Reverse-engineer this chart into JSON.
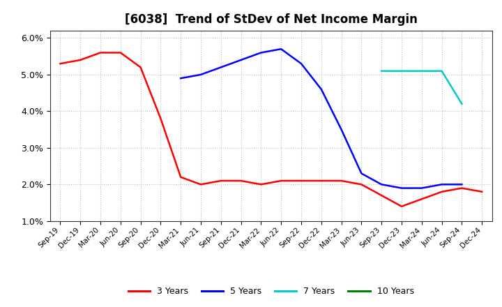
{
  "title": "[6038]  Trend of StDev of Net Income Margin",
  "title_fontsize": 12,
  "background_color": "#ffffff",
  "grid_color": "#aaaaaa",
  "ylim": [
    0.01,
    0.062
  ],
  "yticks": [
    0.01,
    0.02,
    0.03,
    0.04,
    0.05,
    0.06
  ],
  "xtick_labels": [
    "Sep-19",
    "Dec-19",
    "Mar-20",
    "Jun-20",
    "Sep-20",
    "Dec-20",
    "Mar-21",
    "Jun-21",
    "Sep-21",
    "Dec-21",
    "Mar-22",
    "Jun-22",
    "Sep-22",
    "Dec-22",
    "Mar-23",
    "Jun-23",
    "Sep-23",
    "Dec-23",
    "Mar-24",
    "Jun-24",
    "Sep-24",
    "Dec-24"
  ],
  "series": {
    "3 Years": {
      "color": "#ff0000",
      "data": [
        0.053,
        0.054,
        0.056,
        0.056,
        0.052,
        0.038,
        0.022,
        0.02,
        0.021,
        0.021,
        0.02,
        0.021,
        0.021,
        0.021,
        0.021,
        0.02,
        0.017,
        0.014,
        0.016,
        0.018,
        0.019,
        0.018
      ]
    },
    "5 Years": {
      "color": "#0000ff",
      "data": [
        null,
        null,
        null,
        null,
        null,
        null,
        0.049,
        0.05,
        0.052,
        0.054,
        0.056,
        0.057,
        0.053,
        0.046,
        0.035,
        0.023,
        0.02,
        0.019,
        0.019,
        0.02,
        0.02,
        null
      ]
    },
    "7 Years": {
      "color": "#00cccc",
      "data": [
        null,
        null,
        null,
        null,
        null,
        null,
        null,
        null,
        null,
        null,
        null,
        null,
        null,
        null,
        null,
        null,
        0.051,
        0.051,
        0.051,
        0.051,
        0.042,
        null
      ]
    },
    "10 Years": {
      "color": "#008000",
      "data": [
        null,
        null,
        null,
        null,
        null,
        null,
        null,
        null,
        null,
        null,
        null,
        null,
        null,
        null,
        null,
        null,
        null,
        null,
        null,
        null,
        null,
        null
      ]
    }
  },
  "legend_labels": [
    "3 Years",
    "5 Years",
    "7 Years",
    "10 Years"
  ],
  "legend_colors": [
    "#ff0000",
    "#0000ff",
    "#00cccc",
    "#008000"
  ]
}
